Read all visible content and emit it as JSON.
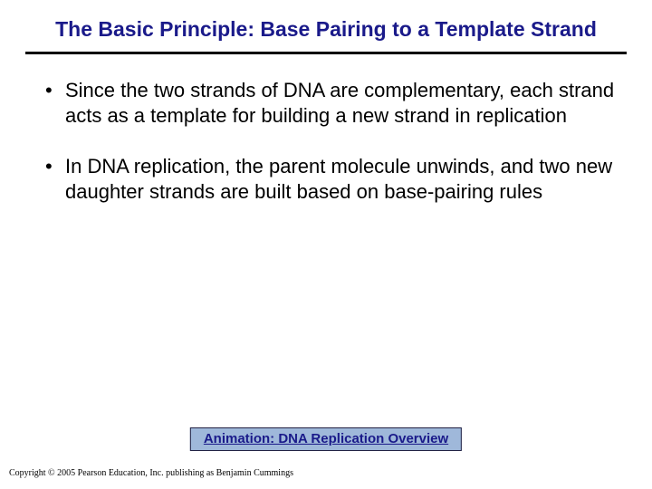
{
  "title": "The Basic Principle: Base Pairing to a Template Strand",
  "title_color": "#1a1a8a",
  "rule_color": "#000000",
  "bullets": [
    "Since the two strands of DNA are complementary, each strand acts as a template for building a new strand in replication",
    "In DNA replication, the parent molecule unwinds, and two new daughter strands are built based on base-pairing rules"
  ],
  "animation_link": {
    "label": "Animation: DNA Replication Overview",
    "bg_color": "#9fb8da",
    "border_color": "#222244",
    "text_color": "#1a1a8a"
  },
  "copyright": "Copyright © 2005 Pearson Education, Inc. publishing as Benjamin Cummings",
  "background_color": "#ffffff",
  "body_font_size": 22,
  "title_font_size": 23
}
